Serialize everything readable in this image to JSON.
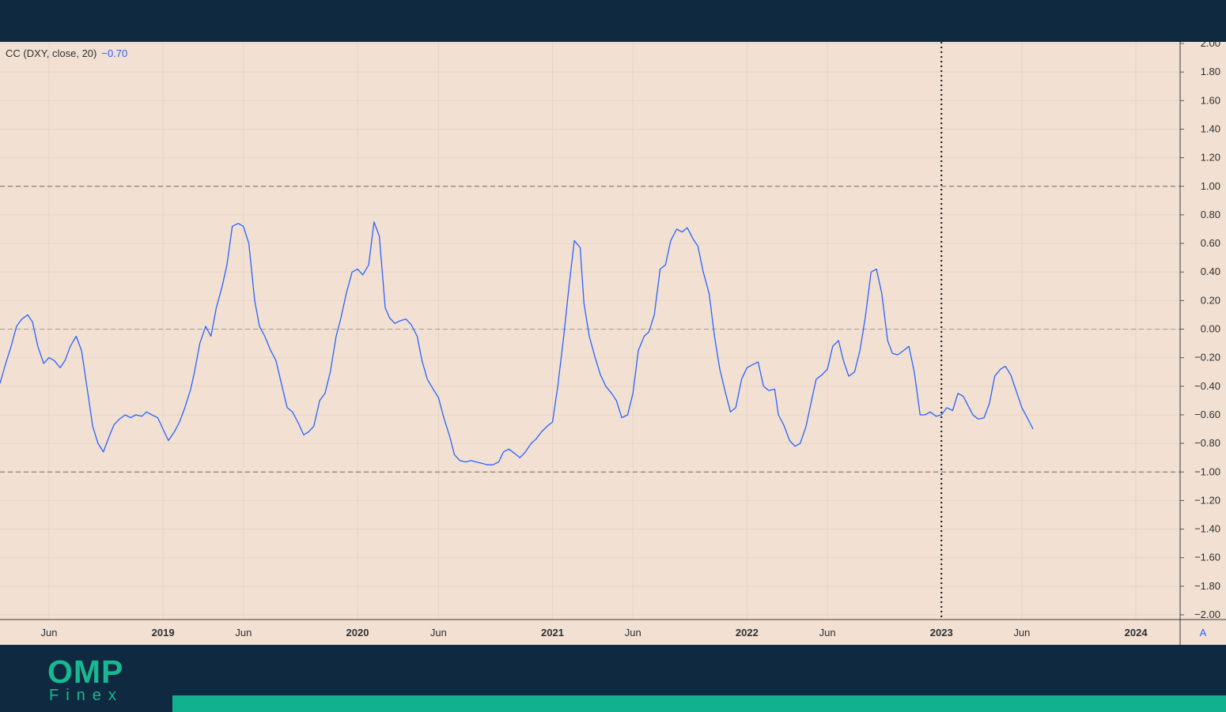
{
  "indicator": {
    "label": "CC (DXY, close, 20)",
    "value": "−0.70"
  },
  "brand": {
    "name": "OMP",
    "tagline": "Finex"
  },
  "colors": {
    "line": "#2962ff",
    "background": "#f2e1d3",
    "frame": "#0f2a40",
    "accent": "#11b190"
  },
  "autoscale_button": "A",
  "chart_data": {
    "type": "line",
    "title": "",
    "xlabel": "",
    "ylabel": "",
    "ylim": [
      -2,
      2
    ],
    "grid": true,
    "reference_lines": [
      1,
      0,
      -1
    ],
    "crosshair_x": "2023-01-01",
    "x_range": [
      "2018-03-01",
      "2024-03-24"
    ],
    "y_ticks": [
      "2.00",
      "1.80",
      "1.60",
      "1.40",
      "1.20",
      "1.00",
      "0.80",
      "0.60",
      "0.40",
      "0.20",
      "0.00",
      "−0.20",
      "−0.40",
      "−0.60",
      "−0.80",
      "−1.00",
      "−1.20",
      "−1.40",
      "−1.60",
      "−1.80",
      "−2.00"
    ],
    "x_ticks": [
      {
        "label": "Jun",
        "date": "2018-06-01",
        "bold": false
      },
      {
        "label": "2019",
        "date": "2019-01-01",
        "bold": true
      },
      {
        "label": "Jun",
        "date": "2019-06-01",
        "bold": false
      },
      {
        "label": "2020",
        "date": "2020-01-01",
        "bold": true
      },
      {
        "label": "Jun",
        "date": "2020-06-01",
        "bold": false
      },
      {
        "label": "2021",
        "date": "2021-01-01",
        "bold": true
      },
      {
        "label": "Jun",
        "date": "2021-06-01",
        "bold": false
      },
      {
        "label": "2022",
        "date": "2022-01-01",
        "bold": true
      },
      {
        "label": "Jun",
        "date": "2022-06-01",
        "bold": false
      },
      {
        "label": "2023",
        "date": "2023-01-01",
        "bold": true
      },
      {
        "label": "Jun",
        "date": "2023-06-01",
        "bold": false
      },
      {
        "label": "2024",
        "date": "2024-01-01",
        "bold": true
      }
    ],
    "series": [
      {
        "name": "CC (DXY, close, 20)",
        "points": [
          [
            "2018-03-01",
            -0.38
          ],
          [
            "2018-03-11",
            -0.25
          ],
          [
            "2018-03-22",
            -0.12
          ],
          [
            "2018-04-01",
            0.02
          ],
          [
            "2018-04-11",
            0.07
          ],
          [
            "2018-04-22",
            0.1
          ],
          [
            "2018-05-01",
            0.05
          ],
          [
            "2018-05-11",
            -0.12
          ],
          [
            "2018-05-22",
            -0.24
          ],
          [
            "2018-06-01",
            -0.2
          ],
          [
            "2018-06-11",
            -0.22
          ],
          [
            "2018-06-22",
            -0.27
          ],
          [
            "2018-07-01",
            -0.22
          ],
          [
            "2018-07-11",
            -0.12
          ],
          [
            "2018-07-22",
            -0.05
          ],
          [
            "2018-08-01",
            -0.15
          ],
          [
            "2018-08-11",
            -0.4
          ],
          [
            "2018-08-22",
            -0.68
          ],
          [
            "2018-09-01",
            -0.8
          ],
          [
            "2018-09-11",
            -0.86
          ],
          [
            "2018-09-22",
            -0.75
          ],
          [
            "2018-10-01",
            -0.67
          ],
          [
            "2018-10-11",
            -0.63
          ],
          [
            "2018-10-22",
            -0.6
          ],
          [
            "2018-11-01",
            -0.62
          ],
          [
            "2018-11-11",
            -0.6
          ],
          [
            "2018-11-22",
            -0.61
          ],
          [
            "2018-12-01",
            -0.58
          ],
          [
            "2018-12-11",
            -0.6
          ],
          [
            "2018-12-22",
            -0.62
          ],
          [
            "2019-01-01",
            -0.7
          ],
          [
            "2019-01-11",
            -0.78
          ],
          [
            "2019-01-22",
            -0.72
          ],
          [
            "2019-02-01",
            -0.65
          ],
          [
            "2019-02-11",
            -0.55
          ],
          [
            "2019-02-22",
            -0.42
          ],
          [
            "2019-03-01",
            -0.3
          ],
          [
            "2019-03-11",
            -0.1
          ],
          [
            "2019-03-22",
            0.02
          ],
          [
            "2019-04-01",
            -0.05
          ],
          [
            "2019-04-11",
            0.15
          ],
          [
            "2019-04-22",
            0.3
          ],
          [
            "2019-05-01",
            0.45
          ],
          [
            "2019-05-11",
            0.72
          ],
          [
            "2019-05-22",
            0.74
          ],
          [
            "2019-06-01",
            0.72
          ],
          [
            "2019-06-11",
            0.6
          ],
          [
            "2019-06-22",
            0.2
          ],
          [
            "2019-07-01",
            0.02
          ],
          [
            "2019-07-11",
            -0.05
          ],
          [
            "2019-07-22",
            -0.15
          ],
          [
            "2019-08-01",
            -0.22
          ],
          [
            "2019-08-11",
            -0.38
          ],
          [
            "2019-08-22",
            -0.55
          ],
          [
            "2019-09-01",
            -0.58
          ],
          [
            "2019-09-11",
            -0.65
          ],
          [
            "2019-09-22",
            -0.74
          ],
          [
            "2019-10-01",
            -0.72
          ],
          [
            "2019-10-11",
            -0.68
          ],
          [
            "2019-10-22",
            -0.5
          ],
          [
            "2019-11-01",
            -0.45
          ],
          [
            "2019-11-11",
            -0.3
          ],
          [
            "2019-11-22",
            -0.05
          ],
          [
            "2019-12-01",
            0.08
          ],
          [
            "2019-12-11",
            0.25
          ],
          [
            "2019-12-22",
            0.4
          ],
          [
            "2020-01-01",
            0.42
          ],
          [
            "2020-01-11",
            0.38
          ],
          [
            "2020-01-22",
            0.45
          ],
          [
            "2020-02-01",
            0.75
          ],
          [
            "2020-02-11",
            0.65
          ],
          [
            "2020-02-22",
            0.15
          ],
          [
            "2020-03-01",
            0.08
          ],
          [
            "2020-03-11",
            0.04
          ],
          [
            "2020-03-22",
            0.06
          ],
          [
            "2020-04-01",
            0.07
          ],
          [
            "2020-04-11",
            0.03
          ],
          [
            "2020-04-22",
            -0.05
          ],
          [
            "2020-05-01",
            -0.22
          ],
          [
            "2020-05-11",
            -0.35
          ],
          [
            "2020-05-22",
            -0.42
          ],
          [
            "2020-06-01",
            -0.48
          ],
          [
            "2020-06-11",
            -0.62
          ],
          [
            "2020-06-22",
            -0.75
          ],
          [
            "2020-07-01",
            -0.88
          ],
          [
            "2020-07-11",
            -0.92
          ],
          [
            "2020-07-22",
            -0.93
          ],
          [
            "2020-08-01",
            -0.92
          ],
          [
            "2020-08-11",
            -0.93
          ],
          [
            "2020-08-22",
            -0.94
          ],
          [
            "2020-09-01",
            -0.95
          ],
          [
            "2020-09-11",
            -0.95
          ],
          [
            "2020-09-22",
            -0.93
          ],
          [
            "2020-10-01",
            -0.86
          ],
          [
            "2020-10-11",
            -0.84
          ],
          [
            "2020-10-22",
            -0.87
          ],
          [
            "2020-11-01",
            -0.9
          ],
          [
            "2020-11-11",
            -0.86
          ],
          [
            "2020-11-22",
            -0.8
          ],
          [
            "2020-12-01",
            -0.77
          ],
          [
            "2020-12-11",
            -0.72
          ],
          [
            "2020-12-22",
            -0.68
          ],
          [
            "2021-01-01",
            -0.65
          ],
          [
            "2021-01-11",
            -0.4
          ],
          [
            "2021-01-22",
            -0.05
          ],
          [
            "2021-02-01",
            0.3
          ],
          [
            "2021-02-11",
            0.62
          ],
          [
            "2021-02-22",
            0.57
          ],
          [
            "2021-03-01",
            0.18
          ],
          [
            "2021-03-11",
            -0.05
          ],
          [
            "2021-03-22",
            -0.2
          ],
          [
            "2021-04-01",
            -0.32
          ],
          [
            "2021-04-11",
            -0.4
          ],
          [
            "2021-04-22",
            -0.45
          ],
          [
            "2021-05-01",
            -0.5
          ],
          [
            "2021-05-11",
            -0.62
          ],
          [
            "2021-05-22",
            -0.6
          ],
          [
            "2021-06-01",
            -0.45
          ],
          [
            "2021-06-11",
            -0.15
          ],
          [
            "2021-06-22",
            -0.05
          ],
          [
            "2021-07-01",
            -0.02
          ],
          [
            "2021-07-11",
            0.1
          ],
          [
            "2021-07-22",
            0.42
          ],
          [
            "2021-08-01",
            0.45
          ],
          [
            "2021-08-11",
            0.62
          ],
          [
            "2021-08-22",
            0.7
          ],
          [
            "2021-09-01",
            0.68
          ],
          [
            "2021-09-11",
            0.71
          ],
          [
            "2021-09-22",
            0.63
          ],
          [
            "2021-10-01",
            0.58
          ],
          [
            "2021-10-11",
            0.4
          ],
          [
            "2021-10-22",
            0.25
          ],
          [
            "2021-11-01",
            -0.05
          ],
          [
            "2021-11-11",
            -0.28
          ],
          [
            "2021-11-22",
            -0.45
          ],
          [
            "2021-12-01",
            -0.58
          ],
          [
            "2021-12-11",
            -0.55
          ],
          [
            "2021-12-22",
            -0.35
          ],
          [
            "2022-01-01",
            -0.27
          ],
          [
            "2022-01-11",
            -0.25
          ],
          [
            "2022-01-22",
            -0.23
          ],
          [
            "2022-02-01",
            -0.4
          ],
          [
            "2022-02-11",
            -0.43
          ],
          [
            "2022-02-22",
            -0.42
          ],
          [
            "2022-03-01",
            -0.6
          ],
          [
            "2022-03-11",
            -0.67
          ],
          [
            "2022-03-22",
            -0.78
          ],
          [
            "2022-04-01",
            -0.82
          ],
          [
            "2022-04-11",
            -0.8
          ],
          [
            "2022-04-22",
            -0.68
          ],
          [
            "2022-05-01",
            -0.52
          ],
          [
            "2022-05-11",
            -0.35
          ],
          [
            "2022-05-22",
            -0.32
          ],
          [
            "2022-06-01",
            -0.28
          ],
          [
            "2022-06-11",
            -0.12
          ],
          [
            "2022-06-22",
            -0.08
          ],
          [
            "2022-07-01",
            -0.22
          ],
          [
            "2022-07-11",
            -0.33
          ],
          [
            "2022-07-22",
            -0.3
          ],
          [
            "2022-08-01",
            -0.15
          ],
          [
            "2022-08-11",
            0.08
          ],
          [
            "2022-08-22",
            0.4
          ],
          [
            "2022-09-01",
            0.42
          ],
          [
            "2022-09-11",
            0.25
          ],
          [
            "2022-09-22",
            -0.08
          ],
          [
            "2022-10-01",
            -0.17
          ],
          [
            "2022-10-11",
            -0.18
          ],
          [
            "2022-10-22",
            -0.15
          ],
          [
            "2022-11-01",
            -0.12
          ],
          [
            "2022-11-11",
            -0.3
          ],
          [
            "2022-11-22",
            -0.6
          ],
          [
            "2022-12-01",
            -0.6
          ],
          [
            "2022-12-11",
            -0.58
          ],
          [
            "2022-12-22",
            -0.61
          ],
          [
            "2023-01-01",
            -0.6
          ],
          [
            "2023-01-11",
            -0.55
          ],
          [
            "2023-01-22",
            -0.57
          ],
          [
            "2023-02-01",
            -0.45
          ],
          [
            "2023-02-11",
            -0.47
          ],
          [
            "2023-02-22",
            -0.55
          ],
          [
            "2023-03-01",
            -0.6
          ],
          [
            "2023-03-11",
            -0.63
          ],
          [
            "2023-03-22",
            -0.62
          ],
          [
            "2023-04-01",
            -0.52
          ],
          [
            "2023-04-11",
            -0.33
          ],
          [
            "2023-04-22",
            -0.28
          ],
          [
            "2023-05-01",
            -0.26
          ],
          [
            "2023-05-11",
            -0.32
          ],
          [
            "2023-05-22",
            -0.44
          ],
          [
            "2023-06-01",
            -0.55
          ],
          [
            "2023-06-11",
            -0.62
          ],
          [
            "2023-06-22",
            -0.7
          ]
        ]
      }
    ]
  }
}
